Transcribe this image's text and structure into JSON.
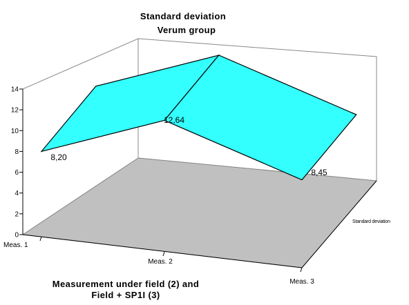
{
  "chart_data": {
    "type": "area",
    "title": "Standard deviation",
    "subtitle": "Verum group",
    "xlabel_line1": "Measurement under field (2) and",
    "xlabel_line2": "Field + SP1I (3)",
    "categories": [
      "Meas. 1",
      "Meas. 2",
      "Meas. 3"
    ],
    "series": [
      {
        "name": "Standard deviation",
        "values": [
          8.2,
          12.64,
          8.45
        ]
      }
    ],
    "data_labels": [
      "8,20",
      "12,64",
      "8,45"
    ],
    "ylim": [
      0,
      14
    ],
    "yticks": [
      "0",
      "2",
      "4",
      "6",
      "8",
      "10",
      "12",
      "14"
    ],
    "grid": false,
    "view": "3d",
    "colors": {
      "fill": "#33FFFF",
      "floor": "#C0C0C0",
      "wall": "#FFFFFF"
    }
  }
}
